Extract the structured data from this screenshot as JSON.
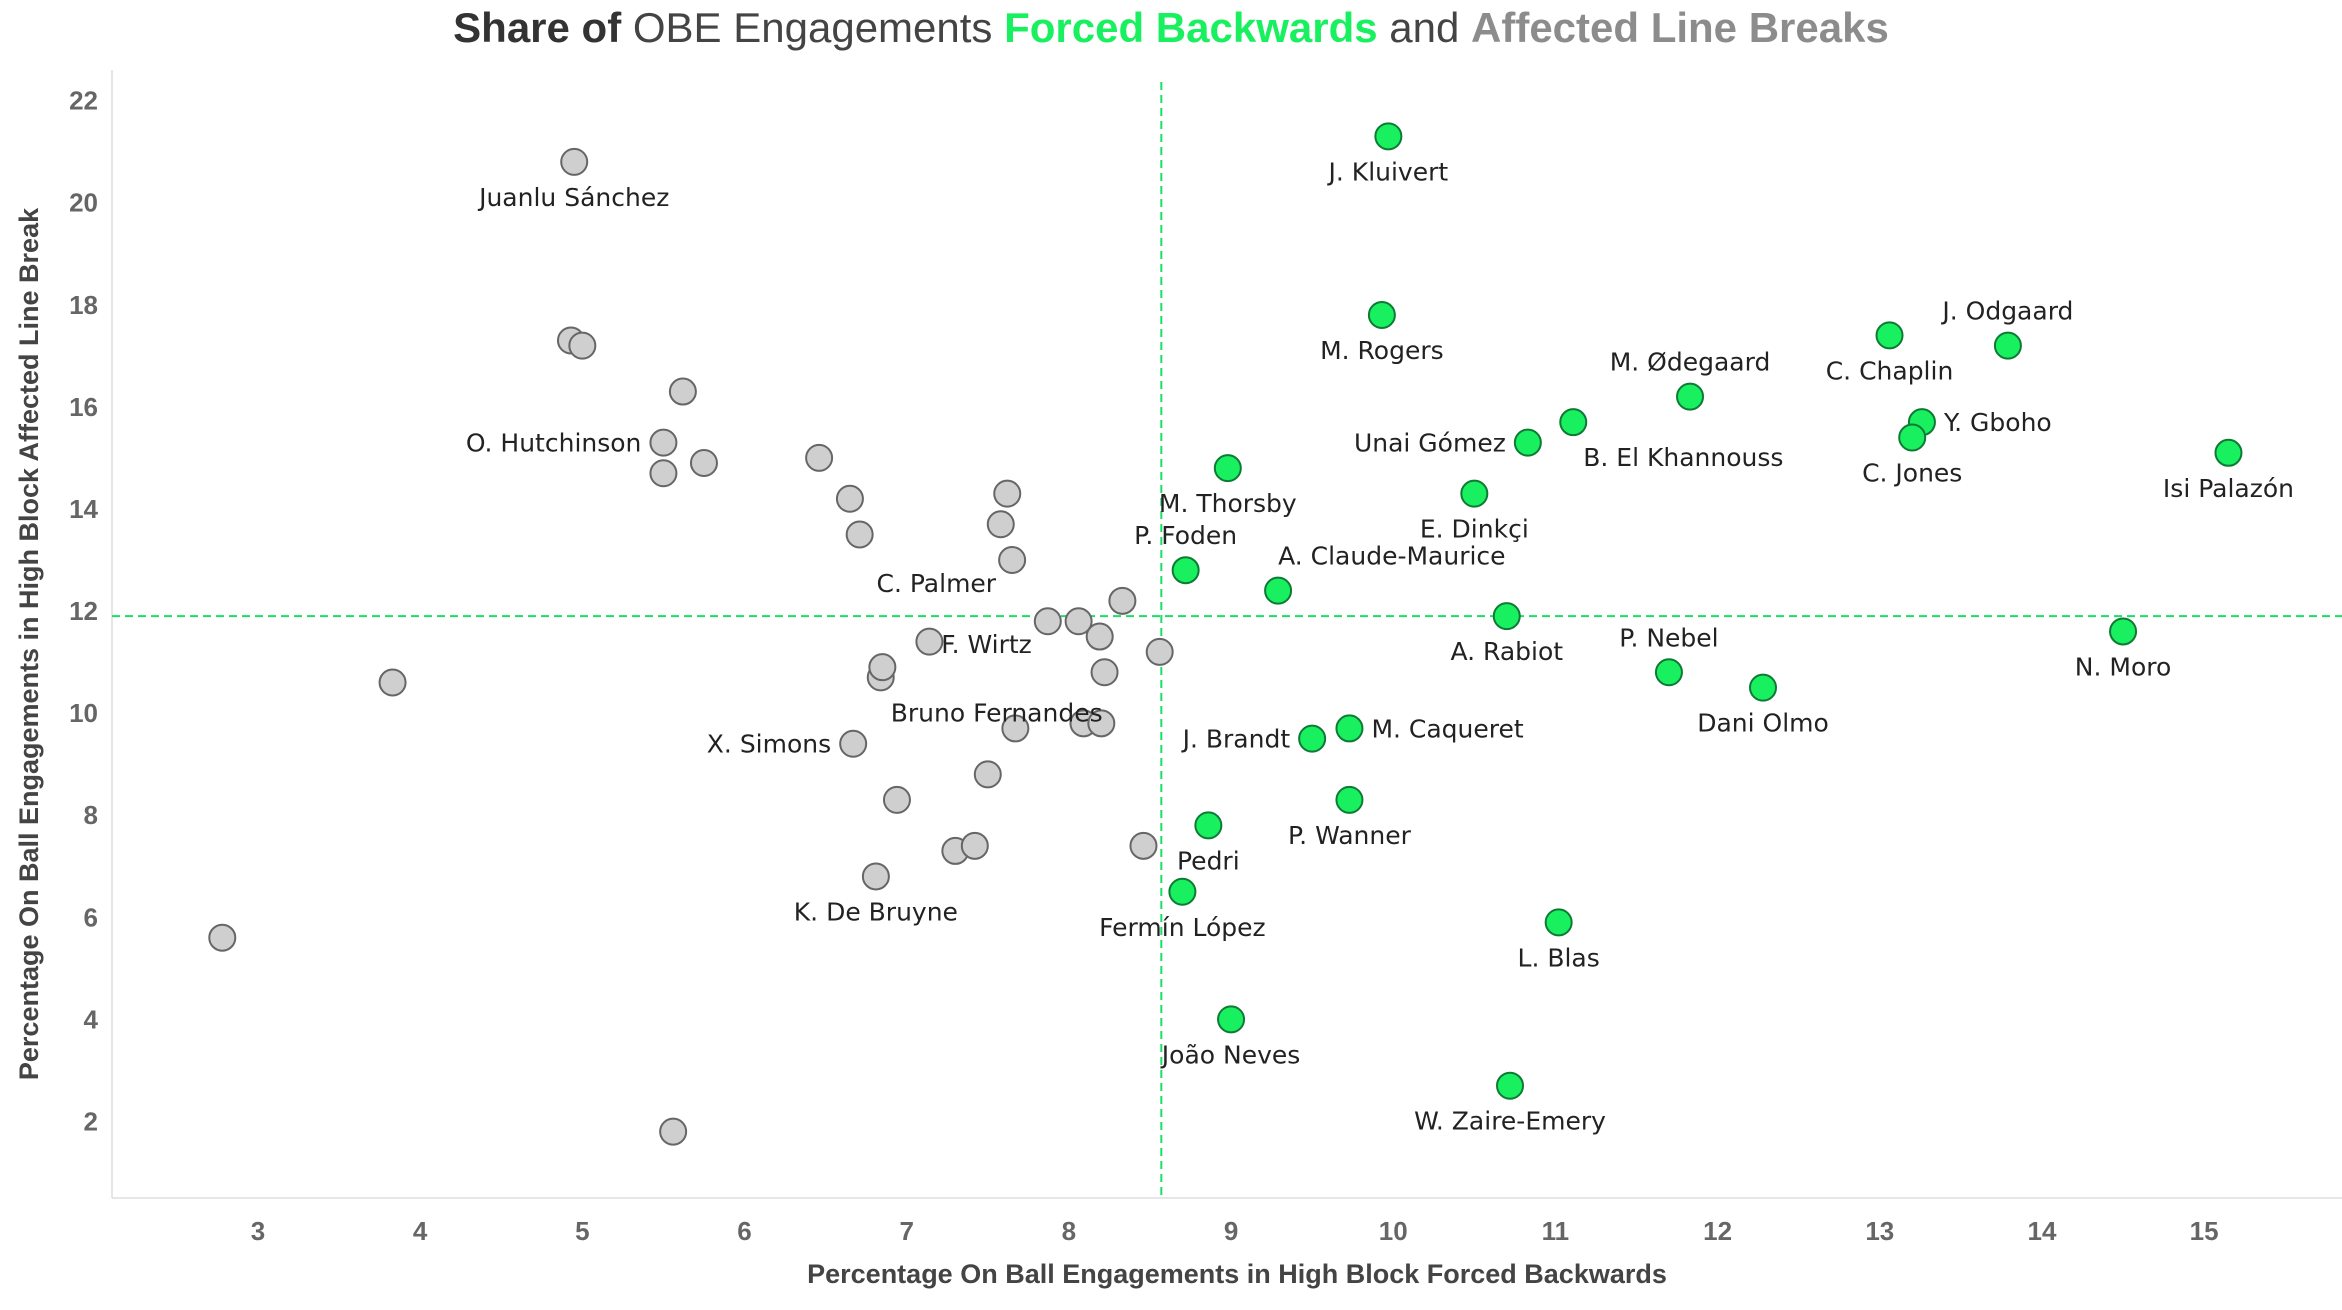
{
  "title": {
    "part1": "Share of",
    "part2": "OBE Engagements",
    "part3": "Forced Backwards",
    "part4": "and",
    "part5": "Affected Line Breaks"
  },
  "colors": {
    "highlight": "#19f05f",
    "highlight_stroke": "#0f7a35",
    "grey_fill": "#cfcfcf",
    "grey_stroke": "#666666",
    "reference_line": "#19e065",
    "title_grey": "#8c8c8c"
  },
  "chart_data": {
    "type": "scatter",
    "xlabel": "Percentage On Ball Engagements in High Block Forced Backwards",
    "ylabel": "Percentage On Ball Engagements in High Block Affected Line Break",
    "xlim": [
      2.1,
      15.85
    ],
    "ylim": [
      0.5,
      22.6
    ],
    "xticks": [
      3,
      4,
      5,
      6,
      7,
      8,
      9,
      10,
      11,
      12,
      13,
      14,
      15
    ],
    "yticks": [
      2,
      4,
      6,
      8,
      10,
      12,
      14,
      16,
      18,
      20,
      22
    ],
    "reference_lines": {
      "x": 8.57,
      "y": 11.9
    },
    "points": [
      {
        "x": 9.97,
        "y": 21.3,
        "label": "J. Kluivert",
        "group": "highlight",
        "lpos": "below"
      },
      {
        "x": 9.93,
        "y": 17.8,
        "label": "M. Rogers",
        "group": "highlight",
        "lpos": "below"
      },
      {
        "x": 11.83,
        "y": 16.2,
        "label": "M. Ødegaard",
        "group": "highlight",
        "lpos": "above"
      },
      {
        "x": 13.06,
        "y": 17.4,
        "label": "C. Chaplin",
        "group": "highlight",
        "lpos": "below"
      },
      {
        "x": 13.79,
        "y": 17.2,
        "label": "J. Odgaard",
        "group": "highlight",
        "lpos": "above"
      },
      {
        "x": 10.83,
        "y": 15.3,
        "label": "Unai Gómez",
        "group": "highlight",
        "lpos": "left"
      },
      {
        "x": 11.11,
        "y": 15.7,
        "label": "B. El Khannouss",
        "group": "highlight",
        "lpos": "belowright"
      },
      {
        "x": 13.26,
        "y": 15.7,
        "label": "Y. Gboho",
        "group": "highlight",
        "lpos": "right"
      },
      {
        "x": 13.2,
        "y": 15.4,
        "label": "C. Jones",
        "group": "highlight",
        "lpos": "below"
      },
      {
        "x": 15.15,
        "y": 15.1,
        "label": "Isi Palazón",
        "group": "highlight",
        "lpos": "below"
      },
      {
        "x": 8.98,
        "y": 14.8,
        "label": "M. Thorsby",
        "group": "highlight",
        "lpos": "below"
      },
      {
        "x": 10.5,
        "y": 14.3,
        "label": "E. Dinkçi",
        "group": "highlight",
        "lpos": "below"
      },
      {
        "x": 8.72,
        "y": 12.8,
        "label": "P. Foden",
        "group": "highlight",
        "lpos": "above"
      },
      {
        "x": 9.29,
        "y": 12.4,
        "label": "A. Claude-Maurice",
        "group": "highlight",
        "lpos": "aboveright"
      },
      {
        "x": 10.7,
        "y": 11.9,
        "label": "A. Rabiot",
        "group": "highlight",
        "lpos": "below"
      },
      {
        "x": 14.5,
        "y": 11.6,
        "label": "N. Moro",
        "group": "highlight",
        "lpos": "below"
      },
      {
        "x": 11.7,
        "y": 10.8,
        "label": "P. Nebel",
        "group": "highlight",
        "lpos": "above"
      },
      {
        "x": 12.28,
        "y": 10.5,
        "label": "Dani Olmo",
        "group": "highlight",
        "lpos": "below"
      },
      {
        "x": 9.73,
        "y": 9.7,
        "label": "M. Caqueret",
        "group": "highlight",
        "lpos": "right"
      },
      {
        "x": 9.5,
        "y": 9.5,
        "label": "J. Brandt",
        "group": "highlight",
        "lpos": "left"
      },
      {
        "x": 9.73,
        "y": 8.3,
        "label": "P. Wanner",
        "group": "highlight",
        "lpos": "below"
      },
      {
        "x": 8.86,
        "y": 7.8,
        "label": "Pedri",
        "group": "highlight",
        "lpos": "below"
      },
      {
        "x": 8.7,
        "y": 6.5,
        "label": "Fermín López",
        "group": "highlight",
        "lpos": "below"
      },
      {
        "x": 11.02,
        "y": 5.9,
        "label": "L. Blas",
        "group": "highlight",
        "lpos": "below"
      },
      {
        "x": 9.0,
        "y": 4.0,
        "label": "João Neves",
        "group": "highlight",
        "lpos": "below"
      },
      {
        "x": 10.72,
        "y": 2.7,
        "label": "W. Zaire-Emery",
        "group": "highlight",
        "lpos": "below"
      },
      {
        "x": 4.95,
        "y": 20.8,
        "label": "Juanlu Sánchez",
        "group": "grey",
        "lpos": "below"
      },
      {
        "x": 5.5,
        "y": 15.3,
        "label": "O. Hutchinson",
        "group": "grey",
        "lpos": "left"
      },
      {
        "x": 7.65,
        "y": 13.0,
        "label": "C. Palmer",
        "group": "grey",
        "lpos": "belowleft"
      },
      {
        "x": 7.87,
        "y": 11.8,
        "label": "F. Wirtz",
        "group": "grey",
        "lpos": "belowleft"
      },
      {
        "x": 6.84,
        "y": 10.7,
        "label": "Bruno Fernandes",
        "group": "grey",
        "lpos": "belowright"
      },
      {
        "x": 6.67,
        "y": 9.4,
        "label": "X. Simons",
        "group": "grey",
        "lpos": "left"
      },
      {
        "x": 6.81,
        "y": 6.8,
        "label": "K. De Bruyne",
        "group": "grey",
        "lpos": "below"
      },
      {
        "x": 4.93,
        "y": 17.3,
        "label": "",
        "group": "grey"
      },
      {
        "x": 5.0,
        "y": 17.2,
        "label": "",
        "group": "grey"
      },
      {
        "x": 5.62,
        "y": 16.3,
        "label": "",
        "group": "grey"
      },
      {
        "x": 5.5,
        "y": 14.7,
        "label": "",
        "group": "grey"
      },
      {
        "x": 5.75,
        "y": 14.9,
        "label": "",
        "group": "grey"
      },
      {
        "x": 6.46,
        "y": 15.0,
        "label": "",
        "group": "grey"
      },
      {
        "x": 6.65,
        "y": 14.2,
        "label": "",
        "group": "grey"
      },
      {
        "x": 6.71,
        "y": 13.5,
        "label": "",
        "group": "grey"
      },
      {
        "x": 7.62,
        "y": 14.3,
        "label": "",
        "group": "grey"
      },
      {
        "x": 7.58,
        "y": 13.7,
        "label": "",
        "group": "grey"
      },
      {
        "x": 8.33,
        "y": 12.2,
        "label": "",
        "group": "grey"
      },
      {
        "x": 8.06,
        "y": 11.8,
        "label": "",
        "group": "grey"
      },
      {
        "x": 8.19,
        "y": 11.5,
        "label": "",
        "group": "grey"
      },
      {
        "x": 8.56,
        "y": 11.2,
        "label": "",
        "group": "grey"
      },
      {
        "x": 7.14,
        "y": 11.4,
        "label": "",
        "group": "grey"
      },
      {
        "x": 6.85,
        "y": 10.9,
        "label": "",
        "group": "grey"
      },
      {
        "x": 8.22,
        "y": 10.8,
        "label": "",
        "group": "grey"
      },
      {
        "x": 7.67,
        "y": 9.7,
        "label": "",
        "group": "grey"
      },
      {
        "x": 8.09,
        "y": 9.8,
        "label": "",
        "group": "grey"
      },
      {
        "x": 8.2,
        "y": 9.8,
        "label": "",
        "group": "grey"
      },
      {
        "x": 7.5,
        "y": 8.8,
        "label": "",
        "group": "grey"
      },
      {
        "x": 6.94,
        "y": 8.3,
        "label": "",
        "group": "grey"
      },
      {
        "x": 7.3,
        "y": 7.3,
        "label": "",
        "group": "grey"
      },
      {
        "x": 7.42,
        "y": 7.4,
        "label": "",
        "group": "grey"
      },
      {
        "x": 8.46,
        "y": 7.4,
        "label": "",
        "group": "grey"
      },
      {
        "x": 3.83,
        "y": 10.6,
        "label": "",
        "group": "grey"
      },
      {
        "x": 2.78,
        "y": 5.6,
        "label": "",
        "group": "grey"
      },
      {
        "x": 5.56,
        "y": 1.8,
        "label": "",
        "group": "grey"
      }
    ]
  }
}
